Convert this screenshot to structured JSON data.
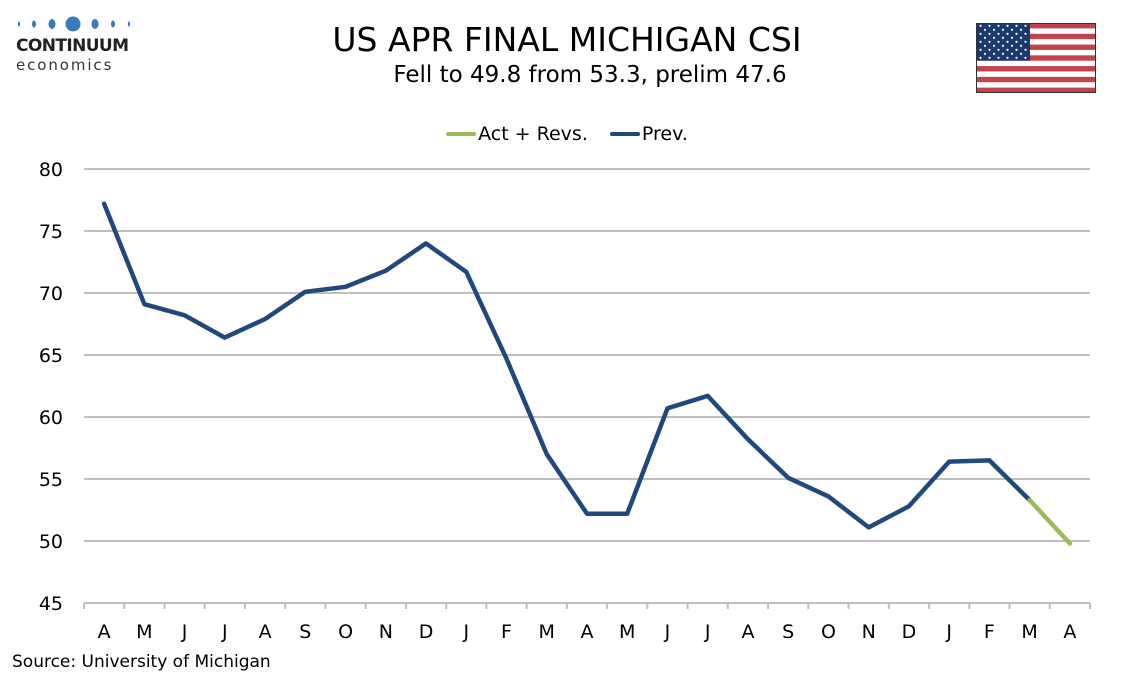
{
  "brand": {
    "name": "CONTINUUM",
    "sub": "economics",
    "color": "#3a7ab8"
  },
  "flag_icon": "us-flag",
  "chart_data": {
    "type": "line",
    "title": "US APR FINAL MICHIGAN CSI",
    "subtitle": "Fell to 49.8 from 53.3, prelim 47.6",
    "xlabel": "",
    "ylabel": "",
    "categories": [
      "A",
      "M",
      "J",
      "J",
      "A",
      "S",
      "O",
      "N",
      "D",
      "J",
      "F",
      "M",
      "A",
      "M",
      "J",
      "J",
      "A",
      "S",
      "O",
      "N",
      "D",
      "J",
      "F",
      "M",
      "A"
    ],
    "ylim": [
      45,
      80
    ],
    "yticks": [
      45,
      50,
      55,
      60,
      65,
      70,
      75,
      80
    ],
    "grid": true,
    "legend_position": "top-center",
    "series": [
      {
        "name": "Act + Revs.",
        "color": "#9bbb59",
        "values": [
          null,
          null,
          null,
          null,
          null,
          null,
          null,
          null,
          null,
          null,
          null,
          null,
          null,
          null,
          null,
          null,
          null,
          null,
          null,
          null,
          null,
          null,
          null,
          53.3,
          49.8
        ]
      },
      {
        "name": "Prev.",
        "color": "#1f497d",
        "values": [
          77.2,
          69.1,
          68.2,
          66.4,
          67.9,
          70.1,
          70.5,
          71.8,
          74.0,
          71.7,
          64.7,
          57.0,
          52.2,
          52.2,
          60.7,
          61.7,
          58.2,
          55.1,
          53.6,
          51.1,
          52.8,
          56.4,
          56.5,
          53.3,
          null
        ]
      }
    ]
  },
  "source": "Source: University of Michigan"
}
